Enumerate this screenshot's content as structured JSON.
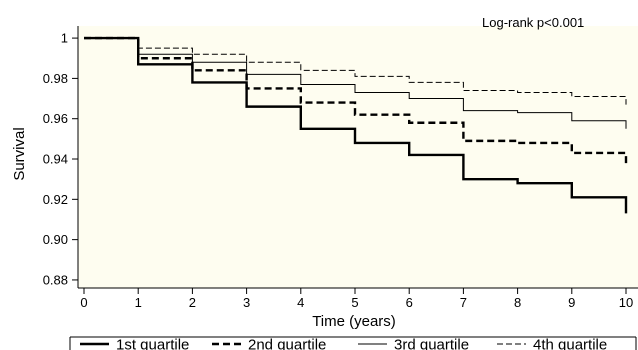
{
  "chart_data": {
    "type": "line",
    "step": true,
    "xlabel": "Time (years)",
    "ylabel": "Survival",
    "xlim": [
      0,
      10
    ],
    "ylim": [
      0.876,
      1.006
    ],
    "xticks": [
      0,
      1,
      2,
      3,
      4,
      5,
      6,
      7,
      8,
      9,
      10
    ],
    "yticks": [
      0.88,
      0.9,
      0.92,
      0.94,
      0.96,
      0.98,
      1
    ],
    "ytick_labels": [
      "0.88",
      "0.90",
      "0.92",
      "0.94",
      "0.96",
      "0.98",
      "1"
    ],
    "grid": false,
    "background": "#fefdf0",
    "annotation": "Log-rank p<0.001",
    "legend_position": "bottom",
    "series": [
      {
        "name": "1st quartile",
        "style": "thick-solid",
        "x": [
          0,
          1,
          2,
          3,
          4,
          5,
          6,
          7,
          8,
          9,
          10
        ],
        "y": [
          1.0,
          0.987,
          0.978,
          0.966,
          0.955,
          0.948,
          0.942,
          0.93,
          0.928,
          0.921,
          0.913
        ]
      },
      {
        "name": "2nd quartile",
        "style": "thick-dashed",
        "x": [
          0,
          1,
          2,
          3,
          4,
          5,
          6,
          7,
          8,
          9,
          10
        ],
        "y": [
          1.0,
          0.99,
          0.984,
          0.975,
          0.968,
          0.962,
          0.958,
          0.949,
          0.948,
          0.943,
          0.937
        ]
      },
      {
        "name": "3rd quartile",
        "style": "thin-solid",
        "x": [
          0,
          1,
          2,
          3,
          4,
          5,
          6,
          7,
          8,
          9,
          10
        ],
        "y": [
          1.0,
          0.992,
          0.988,
          0.982,
          0.977,
          0.973,
          0.97,
          0.964,
          0.963,
          0.959,
          0.955
        ]
      },
      {
        "name": "4th quartile",
        "style": "thin-dashed",
        "x": [
          0,
          1,
          2,
          3,
          4,
          5,
          6,
          7,
          8,
          9,
          10
        ],
        "y": [
          1.0,
          0.995,
          0.992,
          0.988,
          0.984,
          0.981,
          0.978,
          0.974,
          0.973,
          0.971,
          0.967
        ]
      }
    ]
  }
}
